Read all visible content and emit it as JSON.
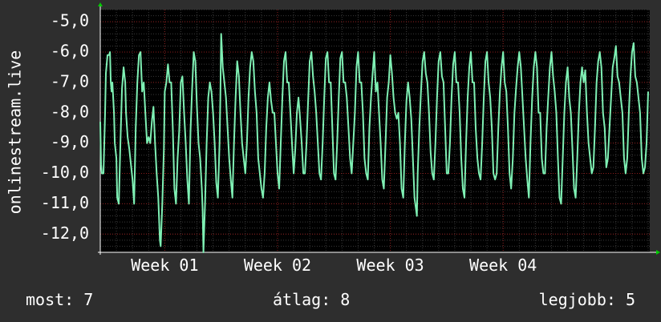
{
  "chart_data": {
    "type": "line",
    "ylabel": "onlinestream.live",
    "xlabel": "",
    "title": "",
    "ylim": [
      -12.6,
      -4.6
    ],
    "yticks": [
      -5,
      -6,
      -7,
      -8,
      -9,
      -10,
      -11,
      -12
    ],
    "ytick_labels": [
      "-5,0",
      "-6,0",
      "-7,0",
      "-8,0",
      "-9,0",
      "-10,0",
      "-11,0",
      "-12,0"
    ],
    "xlim": [
      0,
      34.1
    ],
    "xticks": [
      {
        "x": 4,
        "label": "Week 01"
      },
      {
        "x": 11,
        "label": "Week 02"
      },
      {
        "x": 18,
        "label": "Week 03"
      },
      {
        "x": 25,
        "label": "Week 04"
      }
    ],
    "grid": true,
    "line_color": "#7ff0b4",
    "days": [
      [
        0.0,
        -8.3
      ],
      [
        0.05,
        -9.7
      ],
      [
        0.1,
        -10.0
      ],
      [
        0.2,
        -10.0
      ],
      [
        0.3,
        -8.0
      ],
      [
        0.35,
        -6.7
      ],
      [
        0.45,
        -6.1
      ],
      [
        0.55,
        -6.1
      ],
      [
        0.6,
        -6.0
      ],
      [
        0.65,
        -7.0
      ],
      [
        0.7,
        -7.3
      ],
      [
        0.75,
        -7.0
      ],
      [
        0.85,
        -8.0
      ],
      [
        0.9,
        -9.0
      ],
      [
        1.0,
        -9.5
      ],
      [
        1.05,
        -10.8
      ],
      [
        1.15,
        -11.0
      ],
      [
        1.25,
        -9.0
      ],
      [
        1.35,
        -7.2
      ],
      [
        1.45,
        -6.5
      ],
      [
        1.55,
        -7.0
      ],
      [
        1.6,
        -8.0
      ],
      [
        1.7,
        -8.8
      ],
      [
        1.8,
        -9.2
      ],
      [
        2.0,
        -10.2
      ],
      [
        2.1,
        -11.0
      ],
      [
        2.2,
        -8.5
      ],
      [
        2.3,
        -7.0
      ],
      [
        2.4,
        -6.1
      ],
      [
        2.5,
        -6.0
      ],
      [
        2.6,
        -7.3
      ],
      [
        2.7,
        -7.0
      ],
      [
        2.8,
        -8.0
      ],
      [
        2.9,
        -9.0
      ],
      [
        3.0,
        -8.8
      ],
      [
        3.1,
        -9.0
      ],
      [
        3.2,
        -8.3
      ],
      [
        3.3,
        -7.8
      ],
      [
        3.4,
        -9.0
      ],
      [
        3.5,
        -10.0
      ],
      [
        3.6,
        -10.8
      ],
      [
        3.65,
        -11.5
      ],
      [
        3.7,
        -12.2
      ],
      [
        3.75,
        -12.4
      ],
      [
        3.85,
        -11.0
      ],
      [
        3.95,
        -9.2
      ],
      [
        4.0,
        -7.3
      ],
      [
        4.1,
        -7.0
      ],
      [
        4.2,
        -6.4
      ],
      [
        4.3,
        -7.0
      ],
      [
        4.4,
        -7.0
      ],
      [
        4.5,
        -8.5
      ],
      [
        4.6,
        -10.5
      ],
      [
        4.7,
        -11.0
      ],
      [
        4.8,
        -9.5
      ],
      [
        4.9,
        -8.6
      ],
      [
        5.0,
        -7.0
      ],
      [
        5.1,
        -6.8
      ],
      [
        5.2,
        -8.0
      ],
      [
        5.3,
        -9.0
      ],
      [
        5.4,
        -10.2
      ],
      [
        5.5,
        -11.0
      ],
      [
        5.6,
        -8.6
      ],
      [
        5.7,
        -7.2
      ],
      [
        5.8,
        -6.0
      ],
      [
        5.9,
        -6.3
      ],
      [
        6.0,
        -7.8
      ],
      [
        6.1,
        -9.0
      ],
      [
        6.2,
        -9.5
      ],
      [
        6.3,
        -10.5
      ],
      [
        6.35,
        -11.2
      ],
      [
        6.4,
        -12.6
      ],
      [
        6.5,
        -11.0
      ],
      [
        6.6,
        -9.0
      ],
      [
        6.7,
        -7.5
      ],
      [
        6.8,
        -7.0
      ],
      [
        6.9,
        -7.3
      ],
      [
        7.0,
        -8.0
      ],
      [
        7.1,
        -9.0
      ],
      [
        7.2,
        -10.3
      ],
      [
        7.3,
        -10.8
      ],
      [
        7.4,
        -9.0
      ],
      [
        7.45,
        -7.5
      ],
      [
        7.5,
        -5.4
      ],
      [
        7.6,
        -6.5
      ],
      [
        7.7,
        -7.0
      ],
      [
        7.8,
        -7.5
      ],
      [
        7.9,
        -8.5
      ],
      [
        8.0,
        -9.5
      ],
      [
        8.1,
        -10.2
      ],
      [
        8.2,
        -10.8
      ],
      [
        8.3,
        -9.0
      ],
      [
        8.4,
        -7.5
      ],
      [
        8.5,
        -6.3
      ],
      [
        8.6,
        -6.8
      ],
      [
        8.7,
        -8.0
      ],
      [
        8.8,
        -9.0
      ],
      [
        8.9,
        -9.5
      ],
      [
        9.0,
        -10.0
      ],
      [
        9.1,
        -9.0
      ],
      [
        9.2,
        -7.5
      ],
      [
        9.3,
        -6.5
      ],
      [
        9.4,
        -6.0
      ],
      [
        9.5,
        -6.3
      ],
      [
        9.6,
        -7.3
      ],
      [
        9.7,
        -8.0
      ],
      [
        9.8,
        -9.5
      ],
      [
        10.0,
        -10.5
      ],
      [
        10.1,
        -10.8
      ],
      [
        10.2,
        -10.0
      ],
      [
        10.3,
        -8.5
      ],
      [
        10.4,
        -7.5
      ],
      [
        10.5,
        -7.0
      ],
      [
        10.6,
        -7.6
      ],
      [
        10.7,
        -8.0
      ],
      [
        10.8,
        -8.0
      ],
      [
        10.9,
        -9.0
      ],
      [
        11.0,
        -10.0
      ],
      [
        11.1,
        -10.5
      ],
      [
        11.2,
        -9.0
      ],
      [
        11.3,
        -7.5
      ],
      [
        11.4,
        -6.3
      ],
      [
        11.5,
        -6.0
      ],
      [
        11.6,
        -7.0
      ],
      [
        11.7,
        -7.0
      ],
      [
        11.8,
        -8.0
      ],
      [
        11.9,
        -9.0
      ],
      [
        12.0,
        -10.0
      ],
      [
        12.1,
        -9.2
      ],
      [
        12.2,
        -8.0
      ],
      [
        12.3,
        -7.5
      ],
      [
        12.4,
        -8.2
      ],
      [
        12.5,
        -9.0
      ],
      [
        12.6,
        -10.0
      ],
      [
        12.7,
        -10.0
      ],
      [
        12.8,
        -9.0
      ],
      [
        12.9,
        -7.6
      ],
      [
        13.0,
        -6.3
      ],
      [
        13.1,
        -6.0
      ],
      [
        13.2,
        -6.8
      ],
      [
        13.3,
        -7.3
      ],
      [
        13.4,
        -8.0
      ],
      [
        13.5,
        -9.0
      ],
      [
        13.6,
        -10.0
      ],
      [
        13.7,
        -10.2
      ],
      [
        13.8,
        -9.0
      ],
      [
        13.9,
        -7.5
      ],
      [
        14.0,
        -6.2
      ],
      [
        14.1,
        -6.0
      ],
      [
        14.2,
        -7.0
      ],
      [
        14.3,
        -7.0
      ],
      [
        14.4,
        -8.5
      ],
      [
        14.5,
        -10.0
      ],
      [
        14.6,
        -10.2
      ],
      [
        14.7,
        -9.0
      ],
      [
        14.8,
        -7.5
      ],
      [
        14.9,
        -6.2
      ],
      [
        15.0,
        -6.0
      ],
      [
        15.1,
        -7.0
      ],
      [
        15.2,
        -7.0
      ],
      [
        15.3,
        -7.5
      ],
      [
        15.4,
        -8.5
      ],
      [
        15.5,
        -9.5
      ],
      [
        15.6,
        -10.0
      ],
      [
        15.7,
        -9.0
      ],
      [
        15.8,
        -8.0
      ],
      [
        15.9,
        -6.5
      ],
      [
        16.0,
        -6.0
      ],
      [
        16.1,
        -7.0
      ],
      [
        16.2,
        -7.0
      ],
      [
        16.3,
        -8.0
      ],
      [
        16.4,
        -9.5
      ],
      [
        16.5,
        -10.0
      ],
      [
        16.6,
        -10.2
      ],
      [
        16.7,
        -8.5
      ],
      [
        16.8,
        -7.5
      ],
      [
        16.9,
        -6.7
      ],
      [
        17.0,
        -6.0
      ],
      [
        17.1,
        -7.3
      ],
      [
        17.2,
        -7.0
      ],
      [
        17.3,
        -8.0
      ],
      [
        17.4,
        -9.0
      ],
      [
        17.5,
        -10.2
      ],
      [
        17.6,
        -10.5
      ],
      [
        17.7,
        -9.0
      ],
      [
        17.8,
        -7.5
      ],
      [
        17.9,
        -7.0
      ],
      [
        18.0,
        -6.1
      ],
      [
        18.1,
        -6.7
      ],
      [
        18.2,
        -7.5
      ],
      [
        18.3,
        -8.0
      ],
      [
        18.4,
        -8.2
      ],
      [
        18.5,
        -8.0
      ],
      [
        18.6,
        -9.0
      ],
      [
        18.7,
        -10.5
      ],
      [
        18.8,
        -10.8
      ],
      [
        18.9,
        -9.0
      ],
      [
        19.0,
        -7.6
      ],
      [
        19.1,
        -7.0
      ],
      [
        19.2,
        -7.5
      ],
      [
        19.3,
        -8.2
      ],
      [
        19.4,
        -9.5
      ],
      [
        19.5,
        -10.8
      ],
      [
        19.6,
        -11.2
      ],
      [
        19.65,
        -11.4
      ],
      [
        19.7,
        -10.0
      ],
      [
        19.8,
        -8.5
      ],
      [
        19.9,
        -7.3
      ],
      [
        20.0,
        -6.3
      ],
      [
        20.1,
        -6.0
      ],
      [
        20.2,
        -6.7
      ],
      [
        20.3,
        -7.0
      ],
      [
        20.4,
        -8.0
      ],
      [
        20.5,
        -9.3
      ],
      [
        20.6,
        -10.0
      ],
      [
        20.7,
        -10.2
      ],
      [
        20.8,
        -9.0
      ],
      [
        20.9,
        -7.5
      ],
      [
        21.0,
        -6.3
      ],
      [
        21.1,
        -6.0
      ],
      [
        21.2,
        -6.8
      ],
      [
        21.3,
        -7.0
      ],
      [
        21.4,
        -8.5
      ],
      [
        21.5,
        -10.0
      ],
      [
        21.6,
        -10.0
      ],
      [
        21.7,
        -9.0
      ],
      [
        21.8,
        -7.5
      ],
      [
        21.9,
        -6.4
      ],
      [
        22.0,
        -6.0
      ],
      [
        22.1,
        -7.0
      ],
      [
        22.2,
        -7.0
      ],
      [
        22.3,
        -8.0
      ],
      [
        22.4,
        -9.5
      ],
      [
        22.5,
        -10.5
      ],
      [
        22.6,
        -10.8
      ],
      [
        22.7,
        -9.0
      ],
      [
        22.8,
        -7.5
      ],
      [
        22.9,
        -6.5
      ],
      [
        23.0,
        -6.0
      ],
      [
        23.1,
        -7.0
      ],
      [
        23.2,
        -7.0
      ],
      [
        23.3,
        -8.5
      ],
      [
        23.4,
        -9.5
      ],
      [
        23.5,
        -10.0
      ],
      [
        23.6,
        -10.2
      ],
      [
        23.7,
        -9.0
      ],
      [
        23.8,
        -7.5
      ],
      [
        23.9,
        -6.3
      ],
      [
        24.0,
        -6.0
      ],
      [
        24.1,
        -7.0
      ],
      [
        24.2,
        -7.5
      ],
      [
        24.3,
        -8.5
      ],
      [
        24.4,
        -10.0
      ],
      [
        24.5,
        -10.2
      ],
      [
        24.6,
        -10.0
      ],
      [
        24.7,
        -8.5
      ],
      [
        24.8,
        -7.3
      ],
      [
        24.9,
        -6.5
      ],
      [
        25.0,
        -6.0
      ],
      [
        25.1,
        -7.0
      ],
      [
        25.2,
        -7.3
      ],
      [
        25.3,
        -8.5
      ],
      [
        25.4,
        -10.0
      ],
      [
        25.5,
        -10.5
      ],
      [
        25.6,
        -9.5
      ],
      [
        25.7,
        -8.0
      ],
      [
        25.8,
        -7.2
      ],
      [
        25.9,
        -6.5
      ],
      [
        26.0,
        -6.0
      ],
      [
        26.1,
        -6.5
      ],
      [
        26.2,
        -7.5
      ],
      [
        26.3,
        -8.5
      ],
      [
        26.4,
        -9.5
      ],
      [
        26.5,
        -10.2
      ],
      [
        26.6,
        -10.8
      ],
      [
        26.7,
        -9.0
      ],
      [
        26.8,
        -7.5
      ],
      [
        26.9,
        -6.5
      ],
      [
        27.0,
        -6.0
      ],
      [
        27.1,
        -6.5
      ],
      [
        27.2,
        -8.0
      ],
      [
        27.3,
        -8.0
      ],
      [
        27.4,
        -9.5
      ],
      [
        27.5,
        -10.0
      ],
      [
        27.6,
        -10.0
      ],
      [
        27.7,
        -8.5
      ],
      [
        27.8,
        -7.5
      ],
      [
        27.9,
        -6.5
      ],
      [
        28.0,
        -6.0
      ],
      [
        28.1,
        -6.8
      ],
      [
        28.2,
        -7.3
      ],
      [
        28.3,
        -8.0
      ],
      [
        28.4,
        -9.5
      ],
      [
        28.5,
        -10.8
      ],
      [
        28.6,
        -11.0
      ],
      [
        28.7,
        -9.5
      ],
      [
        28.8,
        -8.0
      ],
      [
        28.9,
        -7.0
      ],
      [
        29.0,
        -6.5
      ],
      [
        29.1,
        -7.5
      ],
      [
        29.2,
        -8.0
      ],
      [
        29.3,
        -9.2
      ],
      [
        29.4,
        -10.5
      ],
      [
        29.5,
        -10.8
      ],
      [
        29.6,
        -9.5
      ],
      [
        29.7,
        -8.0
      ],
      [
        29.8,
        -7.0
      ],
      [
        29.9,
        -6.5
      ],
      [
        30.0,
        -7.0
      ],
      [
        30.1,
        -6.6
      ],
      [
        30.2,
        -8.0
      ],
      [
        30.3,
        -9.0
      ],
      [
        30.4,
        -9.5
      ],
      [
        30.5,
        -10.0
      ],
      [
        30.6,
        -9.8
      ],
      [
        30.7,
        -8.5
      ],
      [
        30.8,
        -7.0
      ],
      [
        30.9,
        -6.3
      ],
      [
        31.0,
        -6.0
      ],
      [
        31.1,
        -6.5
      ],
      [
        31.2,
        -8.0
      ],
      [
        31.3,
        -8.5
      ],
      [
        31.4,
        -9.8
      ],
      [
        31.5,
        -9.5
      ],
      [
        31.6,
        -8.5
      ],
      [
        31.7,
        -7.5
      ],
      [
        31.8,
        -6.5
      ],
      [
        31.9,
        -6.2
      ],
      [
        32.0,
        -5.8
      ],
      [
        32.1,
        -6.8
      ],
      [
        32.2,
        -7.0
      ],
      [
        32.3,
        -7.5
      ],
      [
        32.4,
        -8.0
      ],
      [
        32.5,
        -9.5
      ],
      [
        32.6,
        -10.0
      ],
      [
        32.7,
        -9.5
      ],
      [
        32.8,
        -8.0
      ],
      [
        32.9,
        -6.8
      ],
      [
        33.0,
        -6.0
      ],
      [
        33.1,
        -5.7
      ],
      [
        33.2,
        -6.8
      ],
      [
        33.3,
        -7.0
      ],
      [
        33.4,
        -7.5
      ],
      [
        33.5,
        -8.0
      ],
      [
        33.6,
        -9.5
      ],
      [
        33.7,
        -10.0
      ],
      [
        33.8,
        -9.8
      ],
      [
        33.9,
        -9.0
      ],
      [
        34.0,
        -7.3
      ]
    ]
  },
  "stats": {
    "current": "most: 7",
    "average": "átlag: 8",
    "best": "legjobb: 5"
  },
  "colors": {
    "background": "#2e2e2e",
    "plot_background": "#000000",
    "grid_major": "#8b1a1a",
    "grid_minor": "#3a3a3a",
    "axis_arrow": "#00cc00",
    "line": "#7ff0b4"
  }
}
